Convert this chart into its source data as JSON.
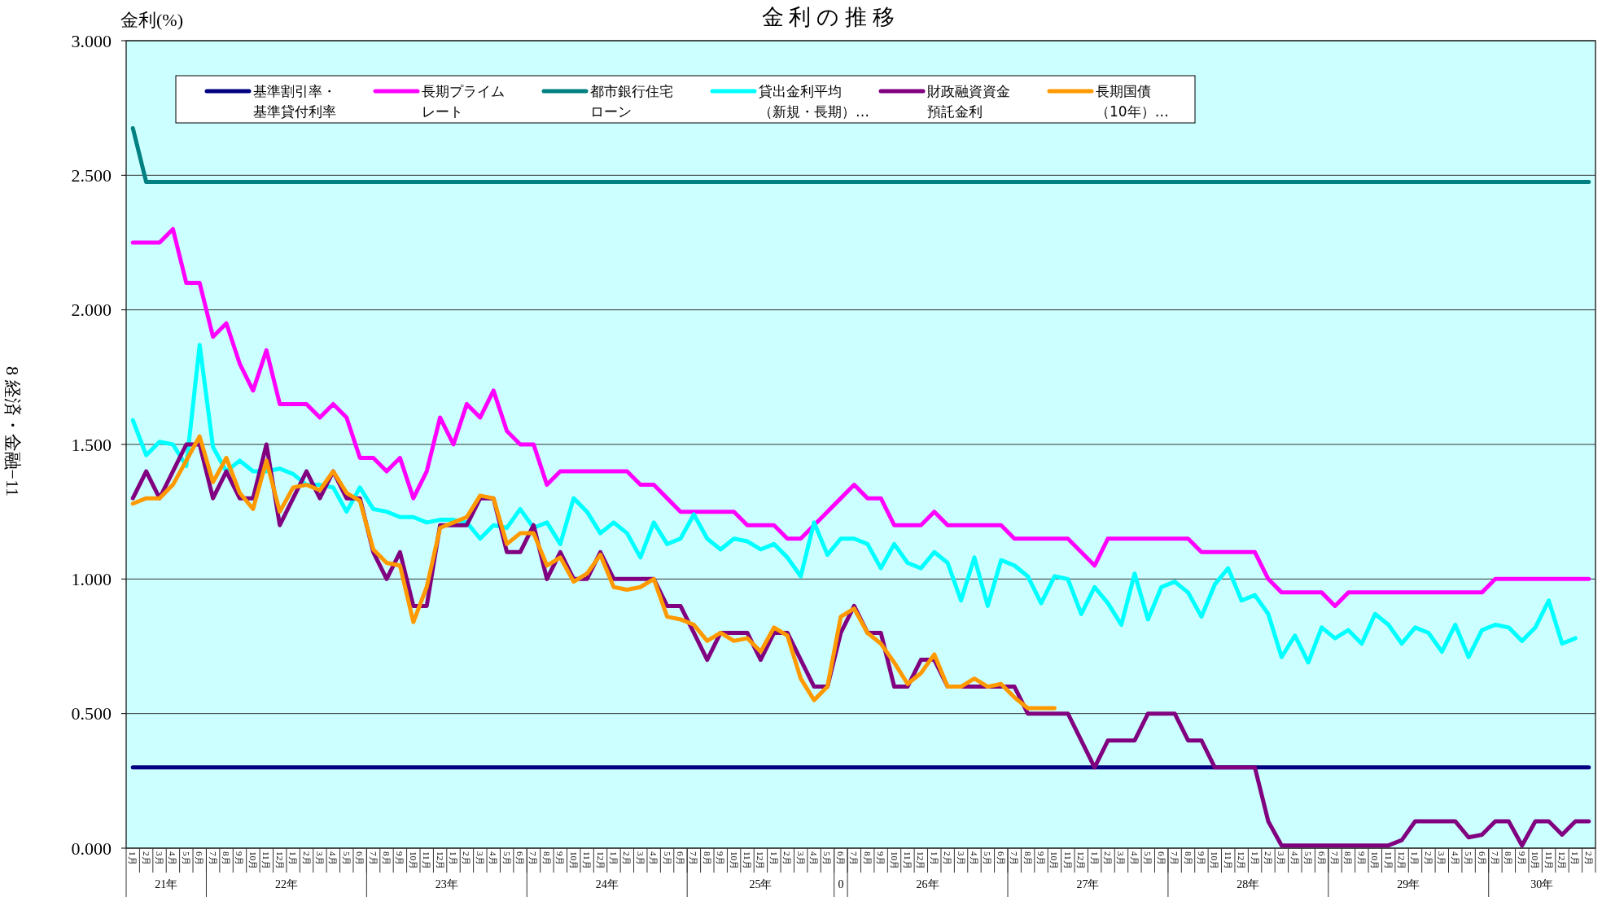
{
  "chart_data": {
    "type": "line",
    "title": "金 利 の 推 移",
    "ylabel": "金利(%)",
    "annotations": [
      "8 経済・金融−11",
      "21年",
      "22年",
      "23年",
      "24年",
      "25年",
      "0",
      "26年",
      "27年",
      "28年",
      "29年",
      "30年"
    ],
    "categories": [
      "1月",
      "2月",
      "3月",
      "4月",
      "5月",
      "6月",
      "7月",
      "8月",
      "9月",
      "10月",
      "11月",
      "12月",
      "1月",
      "2月",
      "3月",
      "4月",
      "5月",
      "6月",
      "7月",
      "8月",
      "9月",
      "10月",
      "11月",
      "12月",
      "1月",
      "2月",
      "3月",
      "4月",
      "5月",
      "6月",
      "7月",
      "8月",
      "9月",
      "10月",
      "11月",
      "12月",
      "1月",
      "2月",
      "3月",
      "4月",
      "5月",
      "6月",
      "7月",
      "8月",
      "9月",
      "10月",
      "11月",
      "12月",
      "1月",
      "2月",
      "3月",
      "4月",
      "5月",
      "6月",
      "7月",
      "8月",
      "9月",
      "10月",
      "11月",
      "12月",
      "1月",
      "2月",
      "3月",
      "4月",
      "5月",
      "6月",
      "7月",
      "8月",
      "9月",
      "10月",
      "11月",
      "12月",
      "1月",
      "2月",
      "3月",
      "4月",
      "5月",
      "6月",
      "7月",
      "8月",
      "9月",
      "10月",
      "11月",
      "12月",
      "1月",
      "2月",
      "3月",
      "4月",
      "5月",
      "6月",
      "7月",
      "8月",
      "9月",
      "10月",
      "11月",
      "12月",
      "1月",
      "2月",
      "3月",
      "4月",
      "5月",
      "6月",
      "7月",
      "8月",
      "9月",
      "10月",
      "11月",
      "12月",
      "1月",
      "2月"
    ],
    "series": [
      {
        "name": "基準割引率・基準貸付利率",
        "color": "#000080",
        "values": [
          0.3,
          0.3,
          0.3,
          0.3,
          0.3,
          0.3,
          0.3,
          0.3,
          0.3,
          0.3,
          0.3,
          0.3,
          0.3,
          0.3,
          0.3,
          0.3,
          0.3,
          0.3,
          0.3,
          0.3,
          0.3,
          0.3,
          0.3,
          0.3,
          0.3,
          0.3,
          0.3,
          0.3,
          0.3,
          0.3,
          0.3,
          0.3,
          0.3,
          0.3,
          0.3,
          0.3,
          0.3,
          0.3,
          0.3,
          0.3,
          0.3,
          0.3,
          0.3,
          0.3,
          0.3,
          0.3,
          0.3,
          0.3,
          0.3,
          0.3,
          0.3,
          0.3,
          0.3,
          0.3,
          0.3,
          0.3,
          0.3,
          0.3,
          0.3,
          0.3,
          0.3,
          0.3,
          0.3,
          0.3,
          0.3,
          0.3,
          0.3,
          0.3,
          0.3,
          0.3,
          0.3,
          0.3,
          0.3,
          0.3,
          0.3,
          0.3,
          0.3,
          0.3,
          0.3,
          0.3,
          0.3,
          0.3,
          0.3,
          0.3,
          0.3,
          0.3,
          0.3,
          0.3,
          0.3,
          0.3,
          0.3,
          0.3,
          0.3,
          0.3,
          0.3,
          0.3,
          0.3,
          0.3,
          0.3,
          0.3,
          0.3,
          0.3,
          0.3,
          0.3,
          0.3,
          0.3,
          0.3,
          0.3,
          0.3,
          0.3
        ]
      },
      {
        "name": "長期プライムレート",
        "color": "#ff00ff",
        "values": [
          2.25,
          2.25,
          2.25,
          2.3,
          2.1,
          2.1,
          1.9,
          1.95,
          1.8,
          1.7,
          1.85,
          1.65,
          1.65,
          1.65,
          1.6,
          1.65,
          1.6,
          1.45,
          1.45,
          1.4,
          1.45,
          1.3,
          1.4,
          1.6,
          1.5,
          1.65,
          1.6,
          1.7,
          1.55,
          1.5,
          1.5,
          1.35,
          1.4,
          1.4,
          1.4,
          1.4,
          1.4,
          1.4,
          1.35,
          1.35,
          1.3,
          1.25,
          1.25,
          1.25,
          1.25,
          1.25,
          1.2,
          1.2,
          1.2,
          1.15,
          1.15,
          1.2,
          1.25,
          1.3,
          1.35,
          1.3,
          1.3,
          1.2,
          1.2,
          1.2,
          1.25,
          1.2,
          1.2,
          1.2,
          1.2,
          1.2,
          1.15,
          1.15,
          1.15,
          1.15,
          1.15,
          1.1,
          1.05,
          1.15,
          1.15,
          1.15,
          1.15,
          1.15,
          1.15,
          1.15,
          1.1,
          1.1,
          1.1,
          1.1,
          1.1,
          1.0,
          0.95,
          0.95,
          0.95,
          0.95,
          0.9,
          0.95,
          0.95,
          0.95,
          0.95,
          0.95,
          0.95,
          0.95,
          0.95,
          0.95,
          0.95,
          0.95,
          1.0,
          1.0,
          1.0,
          1.0,
          1.0,
          1.0,
          1.0,
          1.0
        ]
      },
      {
        "name": "都市銀行住宅ローン",
        "color": "#008080",
        "values": [
          2.675,
          2.475,
          2.475,
          2.475,
          2.475,
          2.475,
          2.475,
          2.475,
          2.475,
          2.475,
          2.475,
          2.475,
          2.475,
          2.475,
          2.475,
          2.475,
          2.475,
          2.475,
          2.475,
          2.475,
          2.475,
          2.475,
          2.475,
          2.475,
          2.475,
          2.475,
          2.475,
          2.475,
          2.475,
          2.475,
          2.475,
          2.475,
          2.475,
          2.475,
          2.475,
          2.475,
          2.475,
          2.475,
          2.475,
          2.475,
          2.475,
          2.475,
          2.475,
          2.475,
          2.475,
          2.475,
          2.475,
          2.475,
          2.475,
          2.475,
          2.475,
          2.475,
          2.475,
          2.475,
          2.475,
          2.475,
          2.475,
          2.475,
          2.475,
          2.475,
          2.475,
          2.475,
          2.475,
          2.475,
          2.475,
          2.475,
          2.475,
          2.475,
          2.475,
          2.475,
          2.475,
          2.475,
          2.475,
          2.475,
          2.475,
          2.475,
          2.475,
          2.475,
          2.475,
          2.475,
          2.475,
          2.475,
          2.475,
          2.475,
          2.475,
          2.475,
          2.475,
          2.475,
          2.475,
          2.475,
          2.475,
          2.475,
          2.475,
          2.475,
          2.475,
          2.475,
          2.475,
          2.475,
          2.475,
          2.475,
          2.475,
          2.475,
          2.475,
          2.475,
          2.475,
          2.475,
          2.475,
          2.475,
          2.475,
          2.475
        ]
      },
      {
        "name": "貸出金利平均（新規・長期）…",
        "color": "#00ffff",
        "values": [
          1.59,
          1.46,
          1.51,
          1.5,
          1.42,
          1.87,
          1.49,
          1.4,
          1.44,
          1.4,
          1.4,
          1.41,
          1.39,
          1.35,
          1.35,
          1.34,
          1.25,
          1.34,
          1.26,
          1.25,
          1.23,
          1.23,
          1.21,
          1.22,
          1.22,
          1.21,
          1.15,
          1.2,
          1.19,
          1.26,
          1.19,
          1.21,
          1.13,
          1.3,
          1.25,
          1.17,
          1.21,
          1.17,
          1.08,
          1.21,
          1.13,
          1.15,
          1.24,
          1.15,
          1.11,
          1.15,
          1.14,
          1.11,
          1.13,
          1.08,
          1.01,
          1.21,
          1.09,
          1.15,
          1.15,
          1.13,
          1.04,
          1.13,
          1.06,
          1.04,
          1.1,
          1.06,
          0.92,
          1.08,
          0.9,
          1.07,
          1.05,
          1.01,
          0.91,
          1.01,
          1.0,
          0.87,
          0.97,
          0.91,
          0.83,
          1.02,
          0.85,
          0.97,
          0.99,
          0.95,
          0.86,
          0.98,
          1.04,
          0.92,
          0.94,
          0.87,
          0.71,
          0.79,
          0.69,
          0.82,
          0.78,
          0.81,
          0.76,
          0.87,
          0.83,
          0.76,
          0.82,
          0.8,
          0.73,
          0.83,
          0.71,
          0.81,
          0.83,
          0.82,
          0.77,
          0.82,
          0.92,
          0.76,
          0.78,
          null
        ]
      },
      {
        "name": "財政融資資金預託金利",
        "color": "#800080",
        "values": [
          1.3,
          1.4,
          1.3,
          1.4,
          1.5,
          1.5,
          1.3,
          1.4,
          1.3,
          1.3,
          1.5,
          1.2,
          1.3,
          1.4,
          1.3,
          1.4,
          1.3,
          1.3,
          1.1,
          1.0,
          1.1,
          0.9,
          0.9,
          1.2,
          1.2,
          1.2,
          1.3,
          1.3,
          1.1,
          1.1,
          1.2,
          1.0,
          1.1,
          1.0,
          1.0,
          1.1,
          1.0,
          1.0,
          1.0,
          1.0,
          0.9,
          0.9,
          0.8,
          0.7,
          0.8,
          0.8,
          0.8,
          0.7,
          0.8,
          0.8,
          0.7,
          0.6,
          0.6,
          0.8,
          0.9,
          0.8,
          0.8,
          0.6,
          0.6,
          0.7,
          0.7,
          0.6,
          0.6,
          0.6,
          0.6,
          0.6,
          0.6,
          0.5,
          0.5,
          0.5,
          0.5,
          0.4,
          0.3,
          0.4,
          0.4,
          0.4,
          0.5,
          0.5,
          0.5,
          0.4,
          0.4,
          0.3,
          0.3,
          0.3,
          0.3,
          0.1,
          0.01,
          0.01,
          0.01,
          0.01,
          0.01,
          0.01,
          0.01,
          0.01,
          0.01,
          0.03,
          0.1,
          0.1,
          0.1,
          0.1,
          0.04,
          0.05,
          0.1,
          0.1,
          0.01,
          0.1,
          0.1,
          0.05,
          0.1,
          0.1
        ]
      },
      {
        "name": "長期国債（10年）…",
        "color": "#ff9900",
        "values": [
          1.28,
          1.3,
          1.3,
          1.35,
          1.44,
          1.53,
          1.36,
          1.45,
          1.32,
          1.26,
          1.44,
          1.25,
          1.34,
          1.35,
          1.33,
          1.4,
          1.32,
          1.29,
          1.11,
          1.06,
          1.05,
          0.84,
          0.97,
          1.19,
          1.21,
          1.23,
          1.31,
          1.3,
          1.13,
          1.17,
          1.17,
          1.05,
          1.08,
          0.99,
          1.02,
          1.09,
          0.97,
          0.96,
          0.97,
          1.0,
          0.86,
          0.85,
          0.83,
          0.77,
          0.8,
          0.77,
          0.78,
          0.73,
          0.82,
          0.79,
          0.63,
          0.55,
          0.6,
          0.86,
          0.89,
          0.8,
          0.76,
          0.69,
          0.61,
          0.65,
          0.72,
          0.6,
          0.6,
          0.63,
          0.6,
          0.61,
          0.56,
          0.52,
          0.52,
          0.52,
          null,
          null,
          null,
          null,
          null,
          null,
          null,
          null,
          null,
          null,
          null,
          null,
          null,
          null,
          null,
          null,
          null,
          null,
          null,
          null,
          null,
          null,
          null,
          null,
          null,
          null,
          null,
          null,
          null,
          null,
          null,
          null,
          null,
          null,
          null,
          null,
          null,
          null,
          null,
          null
        ]
      }
    ],
    "ylim": [
      0,
      3
    ],
    "yticks": [
      {
        "value": 0,
        "label": "0.000"
      },
      {
        "value": 0.5,
        "label": "0.500"
      },
      {
        "value": 1,
        "label": "1.000"
      },
      {
        "value": 1.5,
        "label": "1.500"
      },
      {
        "value": 2,
        "label": "2.000"
      },
      {
        "value": 2.5,
        "label": "2.500"
      },
      {
        "value": 3,
        "label": "3.000"
      }
    ],
    "grid": "y",
    "legend": "top left"
  }
}
